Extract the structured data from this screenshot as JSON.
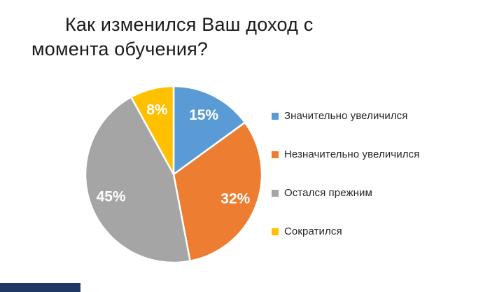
{
  "title": {
    "line1": "Как изменился Ваш доход с",
    "line2": "момента обучения?"
  },
  "chart_data": {
    "type": "pie",
    "title": "Как изменился Ваш доход с момента обучения?",
    "labels": [
      "Значительно увеличился",
      "Незначительно увеличился",
      "Остался прежним",
      "Сократился"
    ],
    "values": [
      15,
      32,
      45,
      8
    ],
    "unit": "%",
    "data_labels": [
      "15%",
      "32%",
      "45%",
      "8%"
    ],
    "colors": [
      "#5B9BD5",
      "#ED7D31",
      "#A5A5A5",
      "#FFC000"
    ],
    "data_label_color": "#FFFFFF",
    "start_angle_deg": 0,
    "direction": "clockwise",
    "legend_position": "right",
    "slice_border_color": "#FFFFFF"
  },
  "bottom_fragment": {
    "color": "#1F3864"
  }
}
